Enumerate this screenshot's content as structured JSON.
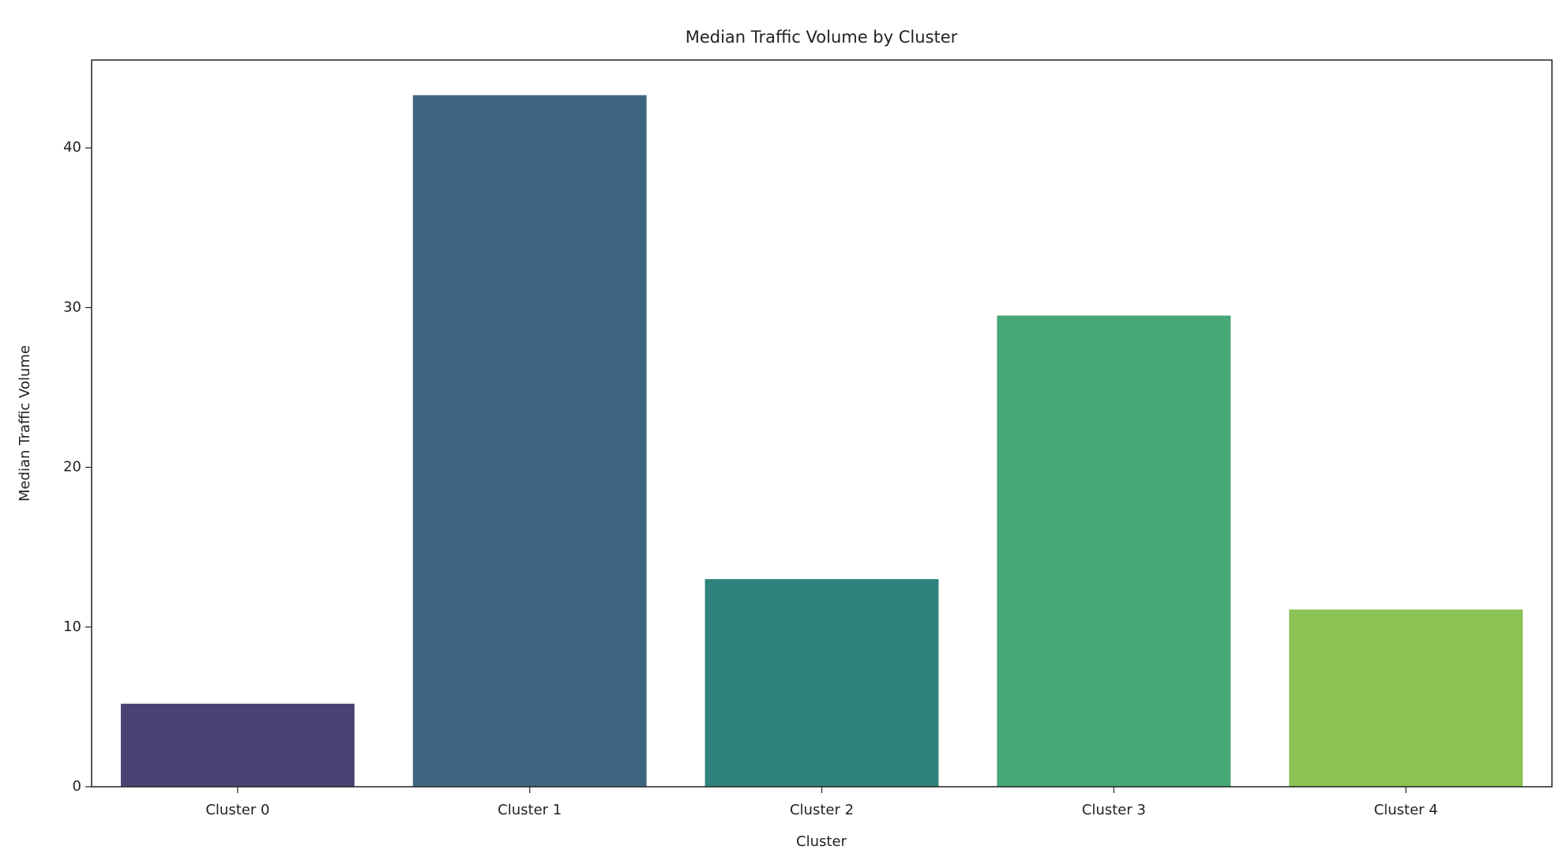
{
  "chart_data": {
    "type": "bar",
    "title": "Median Traffic Volume by Cluster",
    "x_label": "Cluster",
    "y_label": "Median Traffic Volume",
    "categories": [
      "Cluster 0",
      "Cluster 1",
      "Cluster 2",
      "Cluster 3",
      "Cluster 4"
    ],
    "values": [
      5.2,
      43.3,
      13.0,
      29.5,
      11.1
    ],
    "colors": [
      "#4b4174",
      "#3e6680",
      "#2e837c",
      "#47a776",
      "#8bc254"
    ],
    "ylim": [
      0,
      45.5
    ],
    "yticks": [
      0,
      10,
      20,
      30,
      40
    ],
    "grid": false
  }
}
